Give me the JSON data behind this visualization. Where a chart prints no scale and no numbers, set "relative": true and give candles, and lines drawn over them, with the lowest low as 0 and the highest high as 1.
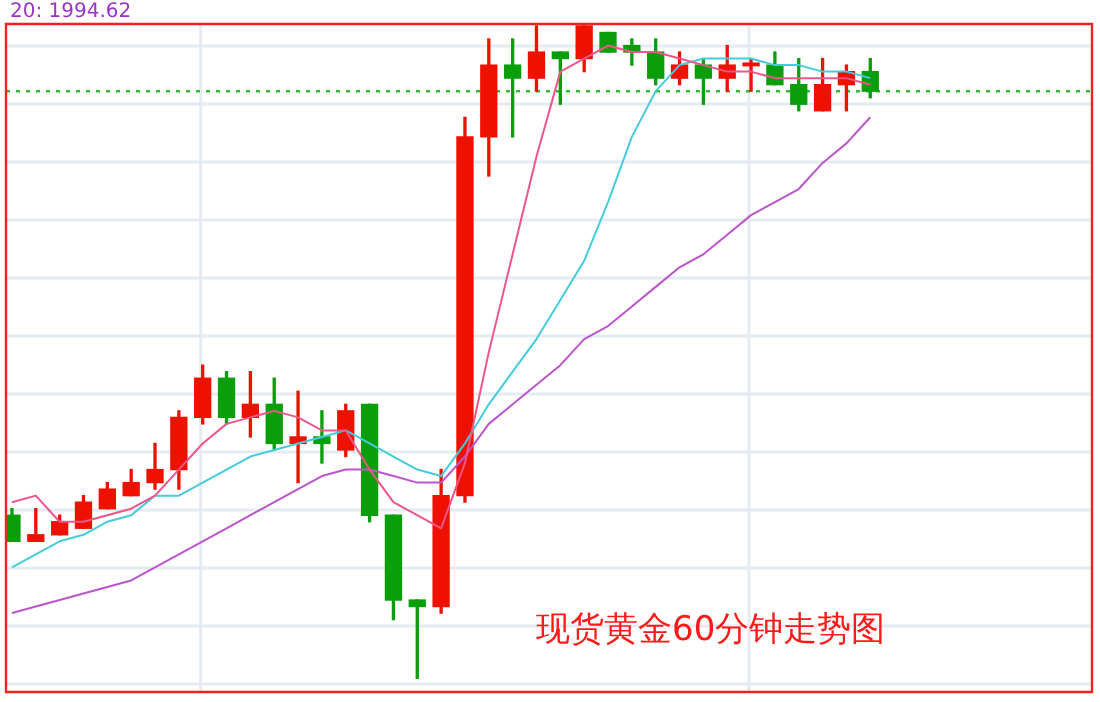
{
  "chart_data": {
    "type": "candlestick",
    "title": "现货黄金60分钟走势图",
    "relative": true,
    "grid": true,
    "legend": false,
    "annotations": [
      "20: 1994.62"
    ],
    "categories": [
      null,
      null,
      null,
      null,
      null,
      null,
      null,
      null,
      null,
      null,
      null,
      null,
      null,
      null,
      null,
      null,
      null,
      null,
      null,
      null,
      null,
      null,
      null,
      null,
      null,
      null,
      null,
      null,
      null,
      null,
      null,
      null,
      null,
      null,
      null,
      null,
      null
    ],
    "ohlc": [
      [
        0.25,
        0.26,
        0.21,
        0.21
      ],
      [
        0.21,
        0.26,
        0.21,
        0.22
      ],
      [
        0.22,
        0.25,
        0.22,
        0.24
      ],
      [
        0.23,
        0.28,
        0.23,
        0.27
      ],
      [
        0.26,
        0.3,
        0.26,
        0.29
      ],
      [
        0.28,
        0.32,
        0.28,
        0.3
      ],
      [
        0.3,
        0.36,
        0.29,
        0.32
      ],
      [
        0.32,
        0.41,
        0.29,
        0.4
      ],
      [
        0.4,
        0.48,
        0.39,
        0.46
      ],
      [
        0.46,
        0.47,
        0.39,
        0.4
      ],
      [
        0.4,
        0.47,
        0.37,
        0.42
      ],
      [
        0.42,
        0.46,
        0.35,
        0.36
      ],
      [
        0.36,
        0.44,
        0.3,
        0.37
      ],
      [
        0.37,
        0.41,
        0.33,
        0.36
      ],
      [
        0.35,
        0.42,
        0.34,
        0.41
      ],
      [
        0.42,
        0.42,
        0.24,
        0.25
      ],
      [
        0.25,
        0.25,
        0.09,
        0.12
      ],
      [
        0.12,
        0.12,
        0,
        0.11
      ],
      [
        0.11,
        0.32,
        0.1,
        0.28
      ],
      [
        0.28,
        0.86,
        0.27,
        0.83
      ],
      [
        0.83,
        0.98,
        0.77,
        0.94
      ],
      [
        0.94,
        0.98,
        0.83,
        0.92
      ],
      [
        0.92,
        1,
        0.9,
        0.96
      ],
      [
        0.96,
        0.96,
        0.88,
        0.95
      ],
      [
        0.95,
        1,
        0.93,
        1
      ],
      [
        0.99,
        0.99,
        0.96,
        0.96
      ],
      [
        0.97,
        0.98,
        0.94,
        0.96
      ],
      [
        0.96,
        0.98,
        0.91,
        0.92
      ],
      [
        0.92,
        0.96,
        0.91,
        0.94
      ],
      [
        0.94,
        0.95,
        0.88,
        0.92
      ],
      [
        0.92,
        0.97,
        0.9,
        0.94
      ],
      [
        0.943,
        0.95,
        0.9,
        0.939
      ],
      [
        0.94,
        0.96,
        0.91,
        0.91
      ],
      [
        0.91,
        0.95,
        0.87,
        0.88
      ],
      [
        0.87,
        0.95,
        0.87,
        0.91
      ],
      [
        0.91,
        0.94,
        0.87,
        0.93
      ],
      [
        0.93,
        0.95,
        0.89,
        0.9
      ]
    ],
    "colors": [
      "#0a9e0a",
      "#ee1100",
      "#ee1100",
      "#ee1100",
      "#ee1100",
      "#ee1100",
      "#ee1100",
      "#ee1100",
      "#ee1100",
      "#0a9e0a",
      "#ee1100",
      "#0a9e0a",
      "#ee1100",
      "#0a9e0a",
      "#ee1100",
      "#0a9e0a",
      "#0a9e0a",
      "#0a9e0a",
      "#ee1100",
      "#ee1100",
      "#ee1100",
      "#0a9e0a",
      "#ee1100",
      "#0a9e0a",
      "#ee1100",
      "#0a9e0a",
      "#0a9e0a",
      "#0a9e0a",
      "#ee1100",
      "#0a9e0a",
      "#ee1100",
      "#ee1100",
      "#0a9e0a",
      "#0a9e0a",
      "#ee1100",
      "#ee1100",
      "#0a9e0a"
    ],
    "series": [
      {
        "type": "line",
        "color": "#ee5588",
        "values": [
          0.27,
          0.28,
          0.24,
          0.24,
          0.25,
          0.26,
          0.28,
          0.32,
          0.36,
          0.39,
          0.4,
          0.41,
          0.4,
          0.38,
          0.38,
          0.32,
          0.27,
          0.25,
          0.23,
          0.33,
          0.5,
          0.65,
          0.8,
          0.93,
          0.95,
          0.97,
          0.96,
          0.96,
          0.95,
          0.94,
          0.93,
          0.93,
          0.92,
          0.92,
          0.92,
          0.92,
          0.91
        ]
      },
      {
        "type": "line",
        "color": "#44ccdd",
        "values": [
          0.17,
          0.19,
          0.21,
          0.22,
          0.24,
          0.25,
          0.28,
          0.28,
          0.3,
          0.32,
          0.34,
          0.35,
          0.36,
          0.37,
          0.38,
          0.36,
          0.34,
          0.32,
          0.31,
          0.36,
          0.42,
          0.47,
          0.52,
          0.58,
          0.64,
          0.73,
          0.83,
          0.9,
          0.94,
          0.95,
          0.95,
          0.95,
          0.94,
          0.94,
          0.93,
          0.93,
          0.92
        ]
      },
      {
        "type": "line",
        "color": "#bb55cc",
        "values": [
          0.1,
          0.11,
          0.12,
          0.13,
          0.14,
          0.15,
          0.17,
          0.19,
          0.21,
          0.23,
          0.25,
          0.27,
          0.29,
          0.31,
          0.32,
          0.32,
          0.31,
          0.3,
          0.3,
          0.34,
          0.39,
          0.42,
          0.45,
          0.48,
          0.52,
          0.54,
          0.57,
          0.6,
          0.63,
          0.65,
          0.68,
          0.71,
          0.73,
          0.75,
          0.79,
          0.82,
          0.86
        ]
      }
    ],
    "ref_lines": [
      {
        "axis": "y",
        "value": 0.9,
        "color": "#33bb33",
        "line_style": "dotted"
      }
    ]
  }
}
